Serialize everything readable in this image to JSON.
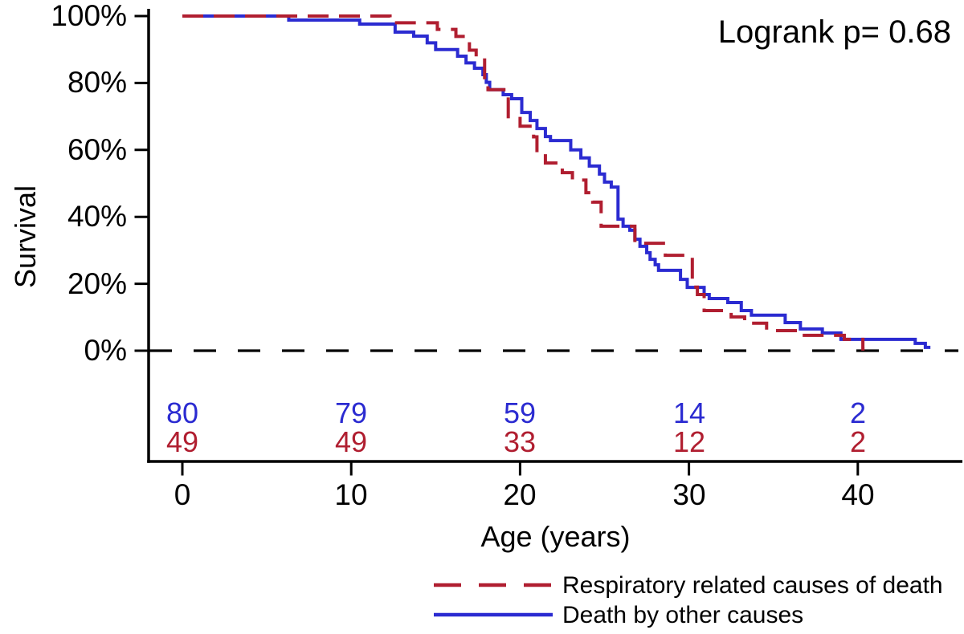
{
  "chart_data": {
    "type": "line",
    "subtype": "kaplan-meier-step-survival",
    "annotation": "Logrank p= 0.68",
    "xlabel": "Age (years)",
    "ylabel": "Survival",
    "xlim": [
      0,
      46.2
    ],
    "ylim": [
      0,
      100
    ],
    "grid": false,
    "x_ticks": [
      0,
      10,
      20,
      30,
      40
    ],
    "x_tick_labels": [
      "0",
      "10",
      "20",
      "30",
      "40"
    ],
    "y_ticks": [
      100,
      80,
      60,
      40,
      20,
      0
    ],
    "y_tick_labels": [
      "100%",
      "80%",
      "60%",
      "40%",
      "20%",
      "0%"
    ],
    "zero_reference_line": {
      "y": 0,
      "style": "dashed",
      "color": "#000000"
    },
    "legend": {
      "position": "bottom-right-below-plot"
    },
    "series": [
      {
        "name": "Respiratory related causes of death",
        "color": "#b01e30",
        "style": "dashed",
        "end_age": 40.4,
        "points": [
          [
            0,
            100
          ],
          [
            12.3,
            98
          ],
          [
            15.1,
            96
          ],
          [
            16.2,
            93.9
          ],
          [
            17,
            89.8
          ],
          [
            17.4,
            87.8
          ],
          [
            17.9,
            81.6
          ],
          [
            18.1,
            78
          ],
          [
            19.3,
            69.4
          ],
          [
            20,
            67.1
          ],
          [
            20.8,
            63.9
          ],
          [
            21,
            59
          ],
          [
            21.5,
            56.1
          ],
          [
            22.5,
            53.2
          ],
          [
            23.1,
            51
          ],
          [
            23.9,
            47.2
          ],
          [
            24.3,
            44.4
          ],
          [
            24.8,
            37.2
          ],
          [
            26.8,
            32.1
          ],
          [
            28.6,
            28.5
          ],
          [
            30.2,
            19
          ],
          [
            30.5,
            16.8
          ],
          [
            30.9,
            12
          ],
          [
            32.5,
            10.1
          ],
          [
            33.3,
            8.2
          ],
          [
            34.6,
            6
          ],
          [
            36.5,
            4.6
          ],
          [
            39.2,
            3.4
          ],
          [
            40.3,
            0.5
          ]
        ]
      },
      {
        "name": "Death by other causes",
        "color": "#2b2bd1",
        "style": "solid",
        "end_age": 44.3,
        "points": [
          [
            0,
            100
          ],
          [
            6.3,
            98.8
          ],
          [
            10.5,
            97.6
          ],
          [
            12.6,
            95.2
          ],
          [
            13.7,
            94
          ],
          [
            14.5,
            92
          ],
          [
            15,
            90
          ],
          [
            16.3,
            88
          ],
          [
            16.8,
            86
          ],
          [
            17.3,
            84.4
          ],
          [
            17.8,
            82.5
          ],
          [
            18,
            80.2
          ],
          [
            18.2,
            78
          ],
          [
            19,
            76.5
          ],
          [
            19.5,
            75.3
          ],
          [
            20.1,
            71.2
          ],
          [
            20.6,
            68.8
          ],
          [
            21,
            66.4
          ],
          [
            21.5,
            64
          ],
          [
            21.8,
            62.8
          ],
          [
            23,
            60
          ],
          [
            23.6,
            57.6
          ],
          [
            24.1,
            55.2
          ],
          [
            24.7,
            52.8
          ],
          [
            25,
            50.4
          ],
          [
            25.4,
            48.9
          ],
          [
            25.8,
            39.3
          ],
          [
            26.1,
            37.2
          ],
          [
            26.5,
            36
          ],
          [
            26.8,
            33.3
          ],
          [
            27.1,
            31.2
          ],
          [
            27.5,
            29.3
          ],
          [
            27.7,
            27.3
          ],
          [
            28,
            25.7
          ],
          [
            28.2,
            24
          ],
          [
            29.5,
            21.3
          ],
          [
            29.9,
            18.9
          ],
          [
            30.9,
            16.8
          ],
          [
            31.2,
            15.6
          ],
          [
            32.3,
            14.4
          ],
          [
            33.1,
            12
          ],
          [
            33.7,
            10.6
          ],
          [
            35.7,
            8.4
          ],
          [
            36.6,
            6.5
          ],
          [
            37.9,
            5.3
          ],
          [
            39,
            3.4
          ],
          [
            43.4,
            2.2
          ],
          [
            44,
            1
          ]
        ]
      }
    ],
    "at_risk": {
      "ages": [
        0,
        10,
        20,
        30,
        40
      ],
      "rows": [
        {
          "series": "Death by other causes",
          "color": "#2b2bd1",
          "counts": [
            "80",
            "79",
            "59",
            "14",
            "2"
          ]
        },
        {
          "series": "Respiratory related causes of death",
          "color": "#b01e30",
          "counts": [
            "49",
            "49",
            "33",
            "12",
            "2"
          ]
        }
      ]
    }
  }
}
